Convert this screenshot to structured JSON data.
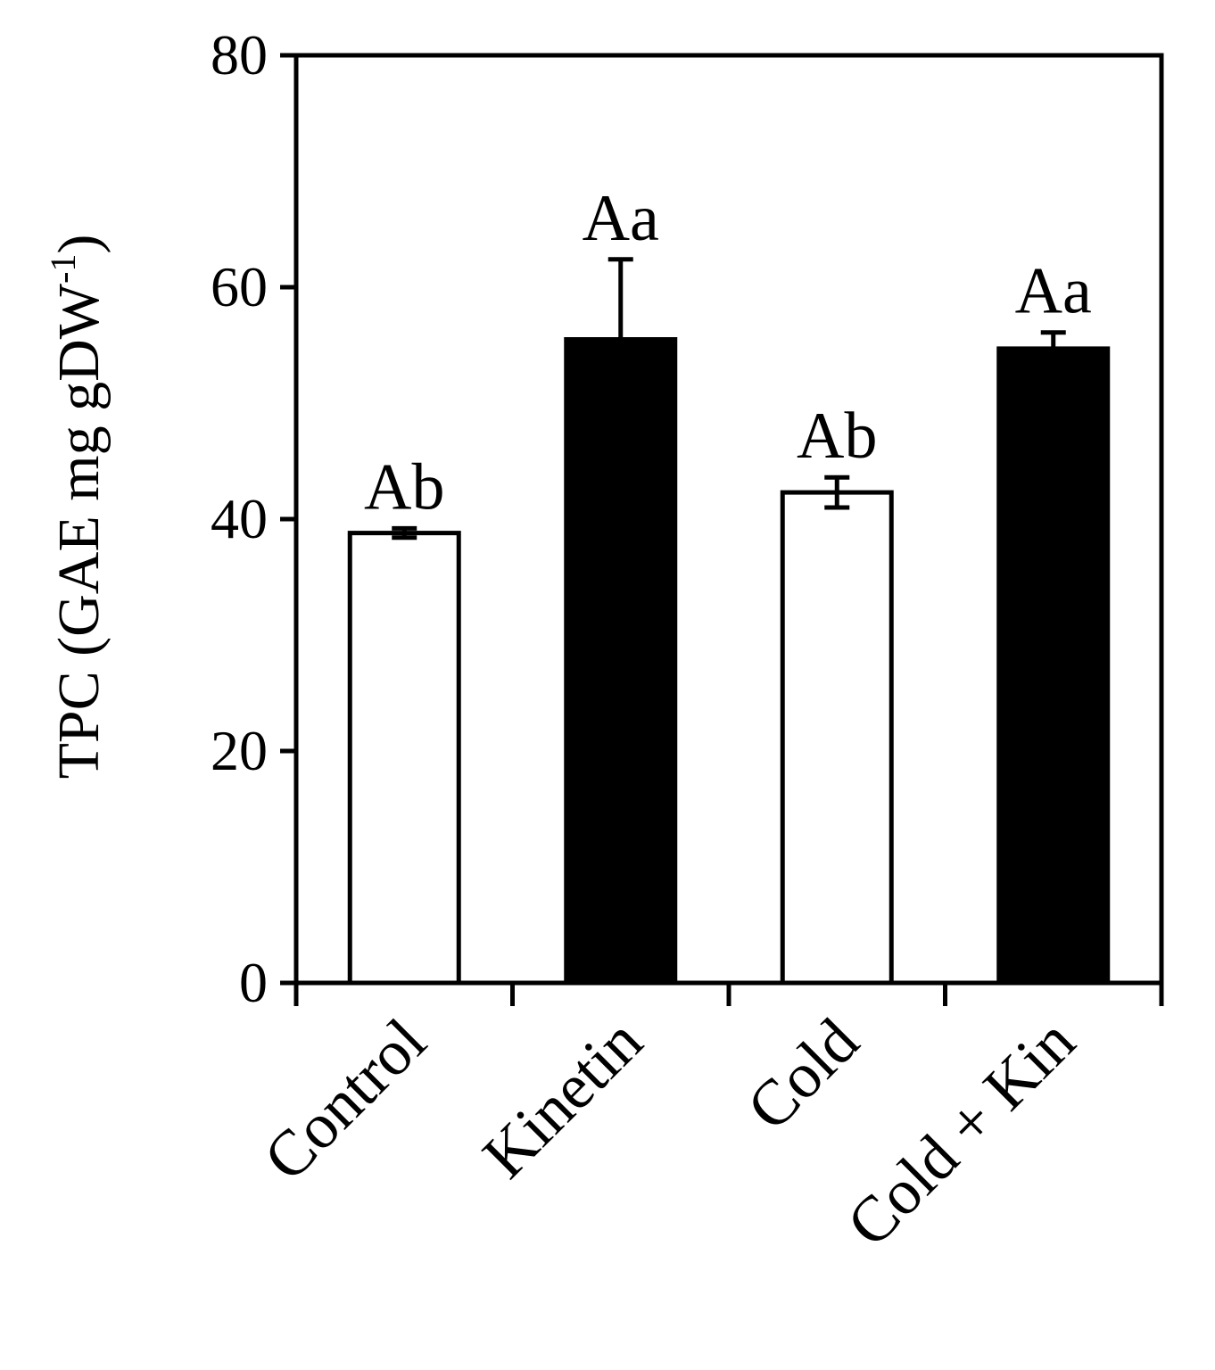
{
  "chart_data": {
    "type": "bar",
    "categories": [
      "Control",
      "Kinetin",
      "Cold",
      "Cold + Kin"
    ],
    "values": [
      38.8,
      55.5,
      42.3,
      54.7
    ],
    "errors": [
      0.4,
      6.9,
      1.3,
      1.4
    ],
    "bar_fills": [
      "#ffffff",
      "#000000",
      "#ffffff",
      "#000000"
    ],
    "annotations": [
      "Ab",
      "Aa",
      "Ab",
      "Aa"
    ],
    "ylabel_main": "TPC (GAE mg gDW",
    "ylabel_sup": "-1",
    "ylabel_close": ")",
    "xlabel": "",
    "ylim": [
      0,
      80
    ],
    "yticks": [
      0,
      20,
      40,
      60,
      80
    ],
    "grid": false
  }
}
